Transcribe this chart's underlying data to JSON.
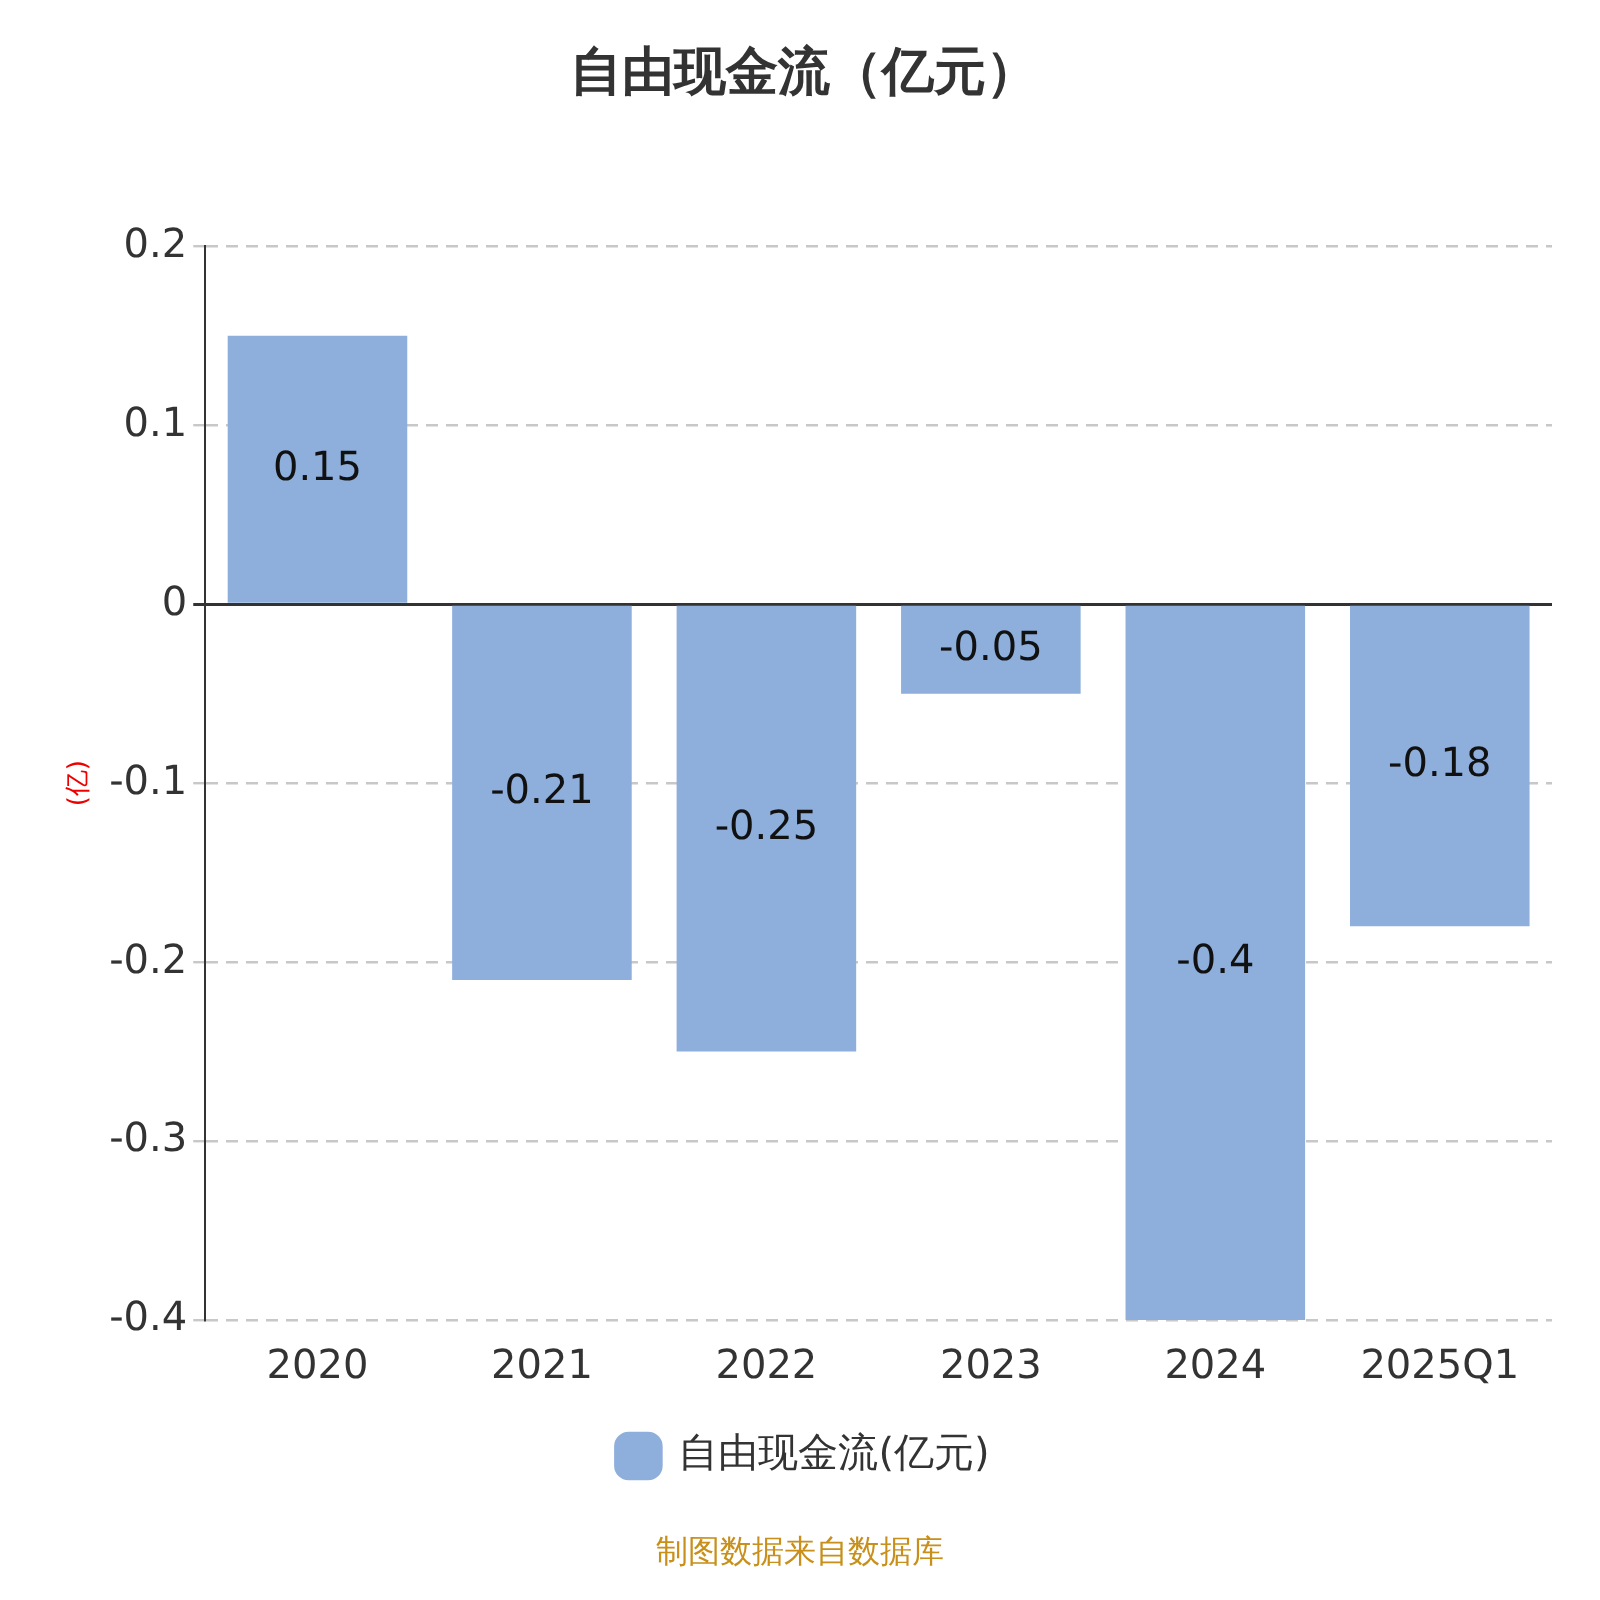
{
  "chart_data": {
    "type": "bar",
    "title": "自由现金流（亿元）",
    "ylabel": "(亿)",
    "categories": [
      "2020",
      "2021",
      "2022",
      "2023",
      "2024",
      "2025Q1"
    ],
    "series": [
      {
        "name": "自由现金流(亿元)",
        "color": "#8eaedb",
        "values": [
          0.15,
          -0.21,
          -0.25,
          -0.05,
          -0.4,
          -0.18
        ]
      }
    ],
    "ylim": [
      -0.4,
      0.2
    ],
    "yticks": [
      -0.4,
      -0.3,
      -0.2,
      -0.1,
      0,
      0.1,
      0.2
    ],
    "grid": "y",
    "legend": "bottom",
    "data_labels": true,
    "annotations": [
      "制图数据来自数据库"
    ]
  }
}
